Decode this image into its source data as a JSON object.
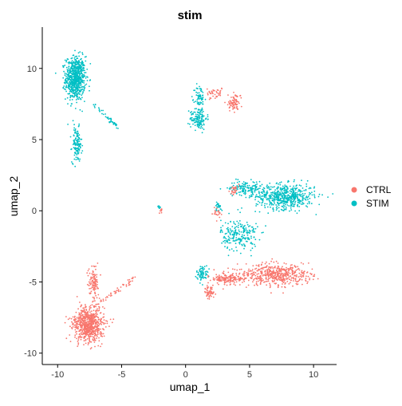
{
  "chart_data": {
    "type": "scatter",
    "title": "stim",
    "xlabel": "umap_1",
    "ylabel": "umap_2",
    "xlim": [
      -11.2,
      11.8
    ],
    "ylim": [
      -10.8,
      12.9
    ],
    "x_ticks": [
      -10,
      -5,
      0,
      5,
      10
    ],
    "y_ticks": [
      -10,
      -5,
      0,
      5,
      10
    ],
    "x_tick_labels": [
      "-10",
      "-5",
      "0",
      "5",
      "10"
    ],
    "y_tick_labels": [
      "-10",
      "-5",
      "0",
      "5",
      "10"
    ],
    "grid": false,
    "legend_placement": "right",
    "series": [
      {
        "name": "CTRL",
        "color": "#F8766D",
        "clusters": [
          {
            "center": [
              -7.6,
              -8.0
            ],
            "spread": [
              1.1,
              1.1
            ],
            "n": 700
          },
          {
            "center": [
              -7.2,
              -5.0
            ],
            "spread": [
              0.35,
              1.0
            ],
            "n": 110
          },
          {
            "center": [
              7.0,
              -4.5
            ],
            "spread": [
              2.4,
              0.7
            ],
            "n": 520
          },
          {
            "center": [
              3.3,
              -4.8
            ],
            "spread": [
              1.3,
              0.35
            ],
            "n": 160
          },
          {
            "center": [
              1.9,
              -5.7
            ],
            "spread": [
              0.35,
              0.4
            ],
            "n": 60
          },
          {
            "center": [
              3.8,
              7.6
            ],
            "spread": [
              0.45,
              0.55
            ],
            "n": 80
          },
          {
            "center": [
              2.2,
              8.3
            ],
            "spread": [
              0.6,
              0.35
            ],
            "n": 40
          },
          {
            "center": [
              3.8,
              1.5
            ],
            "spread": [
              0.25,
              0.3
            ],
            "n": 30
          },
          {
            "center": [
              2.5,
              -0.2
            ],
            "spread": [
              0.3,
              0.3
            ],
            "n": 20
          },
          {
            "center": [
              -1.9,
              0.0
            ],
            "spread": [
              0.1,
              0.2
            ],
            "n": 8
          }
        ]
      },
      {
        "name": "STIM",
        "color": "#00BFC4",
        "clusters": [
          {
            "center": [
              -8.6,
              9.3
            ],
            "spread": [
              0.7,
              1.4
            ],
            "n": 700
          },
          {
            "center": [
              -8.5,
              4.6
            ],
            "spread": [
              0.35,
              1.1
            ],
            "n": 130
          },
          {
            "center": [
              1.0,
              6.5
            ],
            "spread": [
              0.6,
              0.7
            ],
            "n": 140
          },
          {
            "center": [
              1.1,
              7.9
            ],
            "spread": [
              0.35,
              0.9
            ],
            "n": 70
          },
          {
            "center": [
              7.8,
              1.0
            ],
            "spread": [
              2.1,
              0.8
            ],
            "n": 560
          },
          {
            "center": [
              4.7,
              1.6
            ],
            "spread": [
              1.2,
              0.45
            ],
            "n": 140
          },
          {
            "center": [
              4.2,
              -1.7
            ],
            "spread": [
              1.3,
              1.0
            ],
            "n": 220
          },
          {
            "center": [
              1.3,
              -4.4
            ],
            "spread": [
              0.4,
              0.5
            ],
            "n": 70
          },
          {
            "center": [
              2.6,
              0.3
            ],
            "spread": [
              0.25,
              0.3
            ],
            "n": 25
          },
          {
            "center": [
              -2.1,
              0.3
            ],
            "spread": [
              0.12,
              0.15
            ],
            "n": 8
          }
        ],
        "streaks": [
          {
            "from": [
              -7.2,
              7.5
            ],
            "to": [
              -5.3,
              5.9
            ],
            "n": 45
          }
        ]
      }
    ],
    "extra_streaks_ctrl": [
      {
        "from": [
          -7.0,
          -6.7
        ],
        "to": [
          -3.8,
          -4.6
        ],
        "n": 45
      }
    ]
  }
}
